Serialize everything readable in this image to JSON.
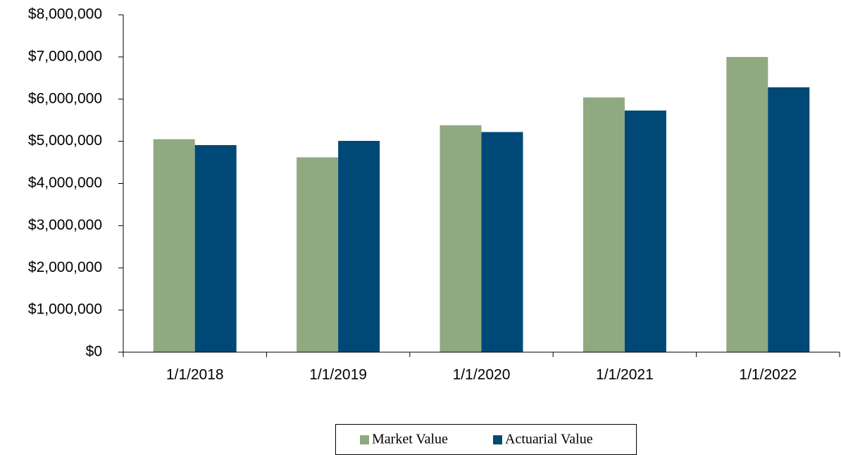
{
  "chart_data": {
    "type": "bar",
    "categories": [
      "1/1/2018",
      "1/1/2019",
      "1/1/2020",
      "1/1/2021",
      "1/1/2022"
    ],
    "series": [
      {
        "name": "Market Value",
        "color": "#8fa981",
        "values": [
          5050000,
          4620000,
          5380000,
          6040000,
          7000000
        ]
      },
      {
        "name": "Actuarial Value",
        "color": "#004876",
        "values": [
          4910000,
          5010000,
          5220000,
          5730000,
          6280000
        ]
      }
    ],
    "ylim": [
      0,
      8000000
    ],
    "yticks": [
      {
        "value": 0,
        "label": "$0"
      },
      {
        "value": 1000000,
        "label": "$1,000,000"
      },
      {
        "value": 2000000,
        "label": "$2,000,000"
      },
      {
        "value": 3000000,
        "label": "$3,000,000"
      },
      {
        "value": 4000000,
        "label": "$4,000,000"
      },
      {
        "value": 5000000,
        "label": "$5,000,000"
      },
      {
        "value": 6000000,
        "label": "$6,000,000"
      },
      {
        "value": 7000000,
        "label": "$7,000,000"
      },
      {
        "value": 8000000,
        "label": "$8,000,000"
      }
    ],
    "legend": "bottom"
  }
}
